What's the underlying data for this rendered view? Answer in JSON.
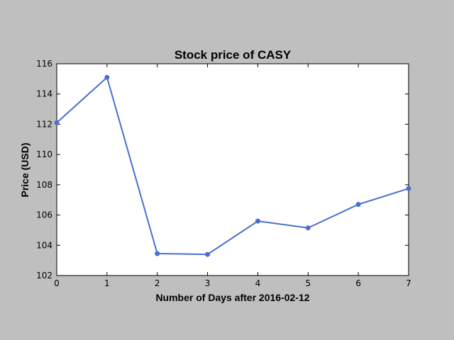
{
  "chart_data": {
    "type": "line",
    "title": "Stock price of CASY",
    "xlabel": "Number of Days after 2016-02-12",
    "ylabel": "Price (USD)",
    "x": [
      0,
      1,
      2,
      3,
      4,
      5,
      6,
      7
    ],
    "series": [
      {
        "values": [
          112.1,
          115.1,
          103.45,
          103.4,
          105.6,
          105.15,
          106.7,
          107.75
        ],
        "color": "#4a6fce"
      }
    ],
    "xlim": [
      0,
      7
    ],
    "ylim": [
      102,
      116
    ],
    "xticks": [
      "0",
      "1",
      "2",
      "3",
      "4",
      "5",
      "6",
      "7"
    ],
    "yticks": [
      "102",
      "104",
      "106",
      "108",
      "110",
      "112",
      "114",
      "116"
    ],
    "grid": false,
    "legend": "none"
  }
}
